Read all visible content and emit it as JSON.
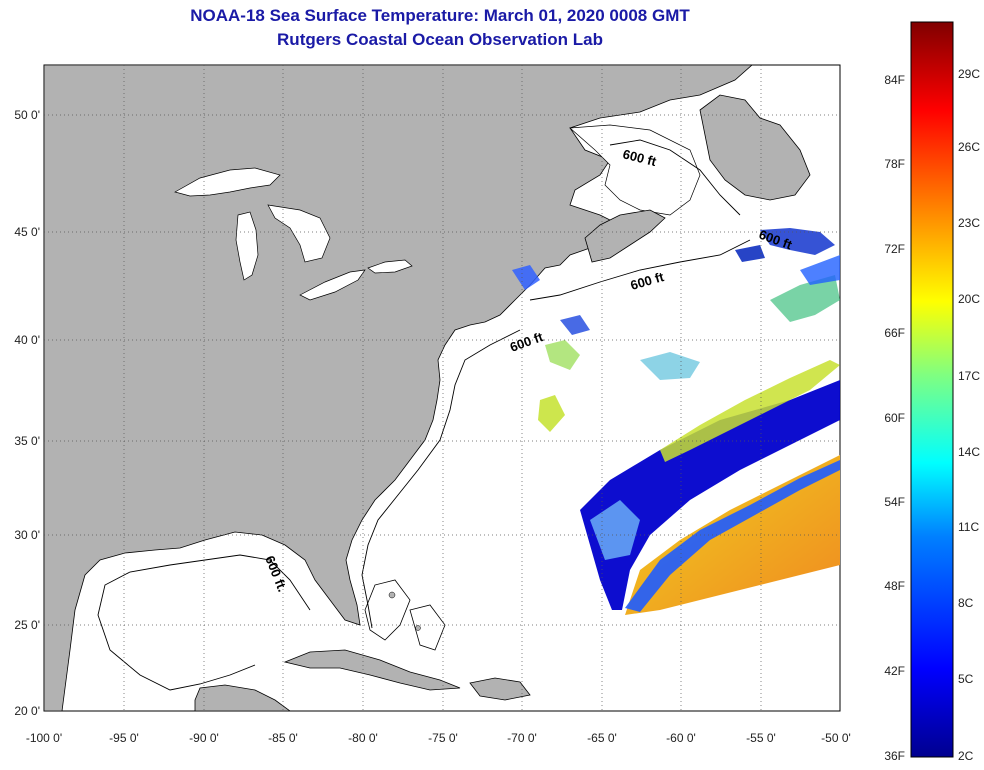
{
  "title_line1": "NOAA-18 Sea Surface Temperature:  March 01, 2020 0008 GMT",
  "title_line2": "Rutgers Coastal Ocean Observation Lab",
  "colors": {
    "land": "#b2b2b2",
    "ocean": "#ffffff",
    "title": "#1a1aa6"
  },
  "map": {
    "lon_range": [
      -100,
      -50
    ],
    "lat_range": [
      20,
      52.5
    ],
    "lon_ticks": [
      "-100 0'",
      "-95 0'",
      "-90 0'",
      "-85 0'",
      "-80 0'",
      "-75 0'",
      "-70 0'",
      "-65 0'",
      "-60 0'",
      "-55 0'",
      "-50 0'"
    ],
    "lat_ticks": [
      "20 0'",
      "25 0'",
      "30 0'",
      "35 0'",
      "40 0'",
      "45 0'",
      "50 0'"
    ],
    "isobath_labels": [
      "600 ft",
      "600 ft",
      "600 ft",
      "600 ft.",
      "600 ft"
    ]
  },
  "colorbar": {
    "f_labels": [
      "84F",
      "78F",
      "72F",
      "66F",
      "60F",
      "54F",
      "48F",
      "42F",
      "36F"
    ],
    "c_labels": [
      "29C",
      "26C",
      "23C",
      "20C",
      "17C",
      "14C",
      "11C",
      "8C",
      "5C",
      "2C"
    ]
  }
}
